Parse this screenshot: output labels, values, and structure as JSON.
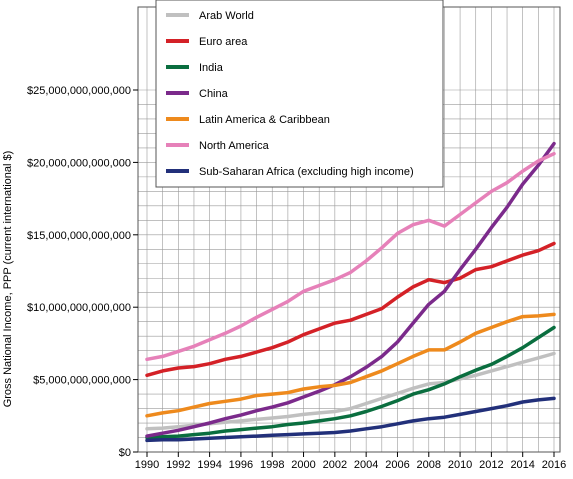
{
  "chart_data": {
    "type": "line",
    "title": "",
    "xlabel": "",
    "ylabel": "Gross National Income, PPP (current international $)",
    "x": [
      1990,
      1991,
      1992,
      1993,
      1994,
      1995,
      1996,
      1997,
      1998,
      1999,
      2000,
      2001,
      2002,
      2003,
      2004,
      2005,
      2006,
      2007,
      2008,
      2009,
      2010,
      2011,
      2012,
      2013,
      2014,
      2015,
      2016
    ],
    "xlim": [
      1990,
      2016
    ],
    "ylim": [
      0,
      25000000000000
    ],
    "x_ticks": [
      "1990",
      "1992",
      "1994",
      "1996",
      "1998",
      "2000",
      "2002",
      "2004",
      "2006",
      "2008",
      "2010",
      "2012",
      "2014",
      "2016"
    ],
    "y_ticks": [
      "$0",
      "$5,000,000,000,000",
      "$10,000,000,000,000",
      "$15,000,000,000,000",
      "$20,000,000,000,000",
      "$25,000,000,000,000"
    ],
    "grid": "on",
    "legend_position": "top",
    "series": [
      {
        "name": "Arab World",
        "color": "#c0c0c0",
        "values": [
          1600000000000.0,
          1650000000000.0,
          1750000000000.0,
          1850000000000.0,
          1950000000000.0,
          2050000000000.0,
          2150000000000.0,
          2250000000000.0,
          2350000000000.0,
          2450000000000.0,
          2600000000000.0,
          2700000000000.0,
          2800000000000.0,
          3000000000000.0,
          3350000000000.0,
          3700000000000.0,
          4050000000000.0,
          4400000000000.0,
          4700000000000.0,
          4800000000000.0,
          5050000000000.0,
          5300000000000.0,
          5600000000000.0,
          5900000000000.0,
          6200000000000.0,
          6500000000000.0,
          6800000000000.0
        ]
      },
      {
        "name": "Euro area",
        "color": "#d42127",
        "values": [
          5300000000000.0,
          5600000000000.0,
          5800000000000.0,
          5900000000000.0,
          6100000000000.0,
          6400000000000.0,
          6600000000000.0,
          6900000000000.0,
          7200000000000.0,
          7600000000000.0,
          8100000000000.0,
          8500000000000.0,
          8900000000000.0,
          9100000000000.0,
          9500000000000.0,
          9900000000000.0,
          10700000000000.0,
          11400000000000.0,
          11900000000000.0,
          11700000000000.0,
          12000000000000.0,
          12600000000000.0,
          12800000000000.0,
          13200000000000.0,
          13600000000000.0,
          13900000000000.0,
          14400000000000.0
        ]
      },
      {
        "name": "India",
        "color": "#0a6e3f",
        "values": [
          1000000000000.0,
          1050000000000.0,
          1100000000000.0,
          1200000000000.0,
          1300000000000.0,
          1450000000000.0,
          1550000000000.0,
          1650000000000.0,
          1750000000000.0,
          1900000000000.0,
          2000000000000.0,
          2150000000000.0,
          2300000000000.0,
          2500000000000.0,
          2800000000000.0,
          3150000000000.0,
          3550000000000.0,
          4000000000000.0,
          4300000000000.0,
          4700000000000.0,
          5200000000000.0,
          5650000000000.0,
          6050000000000.0,
          6600000000000.0,
          7200000000000.0,
          7900000000000.0,
          8600000000000.0
        ]
      },
      {
        "name": "China",
        "color": "#7b2a8b",
        "values": [
          1100000000000.0,
          1300000000000.0,
          1500000000000.0,
          1750000000000.0,
          2000000000000.0,
          2300000000000.0,
          2550000000000.0,
          2850000000000.0,
          3100000000000.0,
          3400000000000.0,
          3800000000000.0,
          4200000000000.0,
          4650000000000.0,
          5200000000000.0,
          5850000000000.0,
          6600000000000.0,
          7600000000000.0,
          8900000000000.0,
          10200000000000.0,
          11100000000000.0,
          12600000000000.0,
          14000000000000.0,
          15500000000000.0,
          16900000000000.0,
          18500000000000.0,
          19800000000000.0,
          21300000000000.0
        ]
      },
      {
        "name": "Latin America & Caribbean",
        "color": "#ee8a1d",
        "values": [
          2500000000000.0,
          2700000000000.0,
          2850000000000.0,
          3100000000000.0,
          3350000000000.0,
          3500000000000.0,
          3650000000000.0,
          3900000000000.0,
          4000000000000.0,
          4100000000000.0,
          4350000000000.0,
          4500000000000.0,
          4600000000000.0,
          4800000000000.0,
          5200000000000.0,
          5600000000000.0,
          6100000000000.0,
          6600000000000.0,
          7050000000000.0,
          7050000000000.0,
          7600000000000.0,
          8200000000000.0,
          8600000000000.0,
          9000000000000.0,
          9350000000000.0,
          9400000000000.0,
          9500000000000.0
        ]
      },
      {
        "name": "North America",
        "color": "#e681b9",
        "values": [
          6400000000000.0,
          6600000000000.0,
          6950000000000.0,
          7300000000000.0,
          7750000000000.0,
          8200000000000.0,
          8700000000000.0,
          9300000000000.0,
          9850000000000.0,
          10400000000000.0,
          11100000000000.0,
          11500000000000.0,
          11900000000000.0,
          12400000000000.0,
          13200000000000.0,
          14100000000000.0,
          15100000000000.0,
          15700000000000.0,
          16000000000000.0,
          15600000000000.0,
          16400000000000.0,
          17200000000000.0,
          18000000000000.0,
          18600000000000.0,
          19400000000000.0,
          20100000000000.0,
          20600000000000.0
        ]
      },
      {
        "name": "Sub-Saharan Africa (excluding high income)",
        "color": "#22307a",
        "values": [
          800000000000.0,
          850000000000.0,
          850000000000.0,
          900000000000.0,
          950000000000.0,
          1000000000000.0,
          1050000000000.0,
          1100000000000.0,
          1150000000000.0,
          1200000000000.0,
          1250000000000.0,
          1300000000000.0,
          1350000000000.0,
          1450000000000.0,
          1600000000000.0,
          1750000000000.0,
          1950000000000.0,
          2150000000000.0,
          2300000000000.0,
          2400000000000.0,
          2600000000000.0,
          2800000000000.0,
          3000000000000.0,
          3200000000000.0,
          3450000000000.0,
          3600000000000.0,
          3700000000000.0
        ]
      }
    ]
  }
}
